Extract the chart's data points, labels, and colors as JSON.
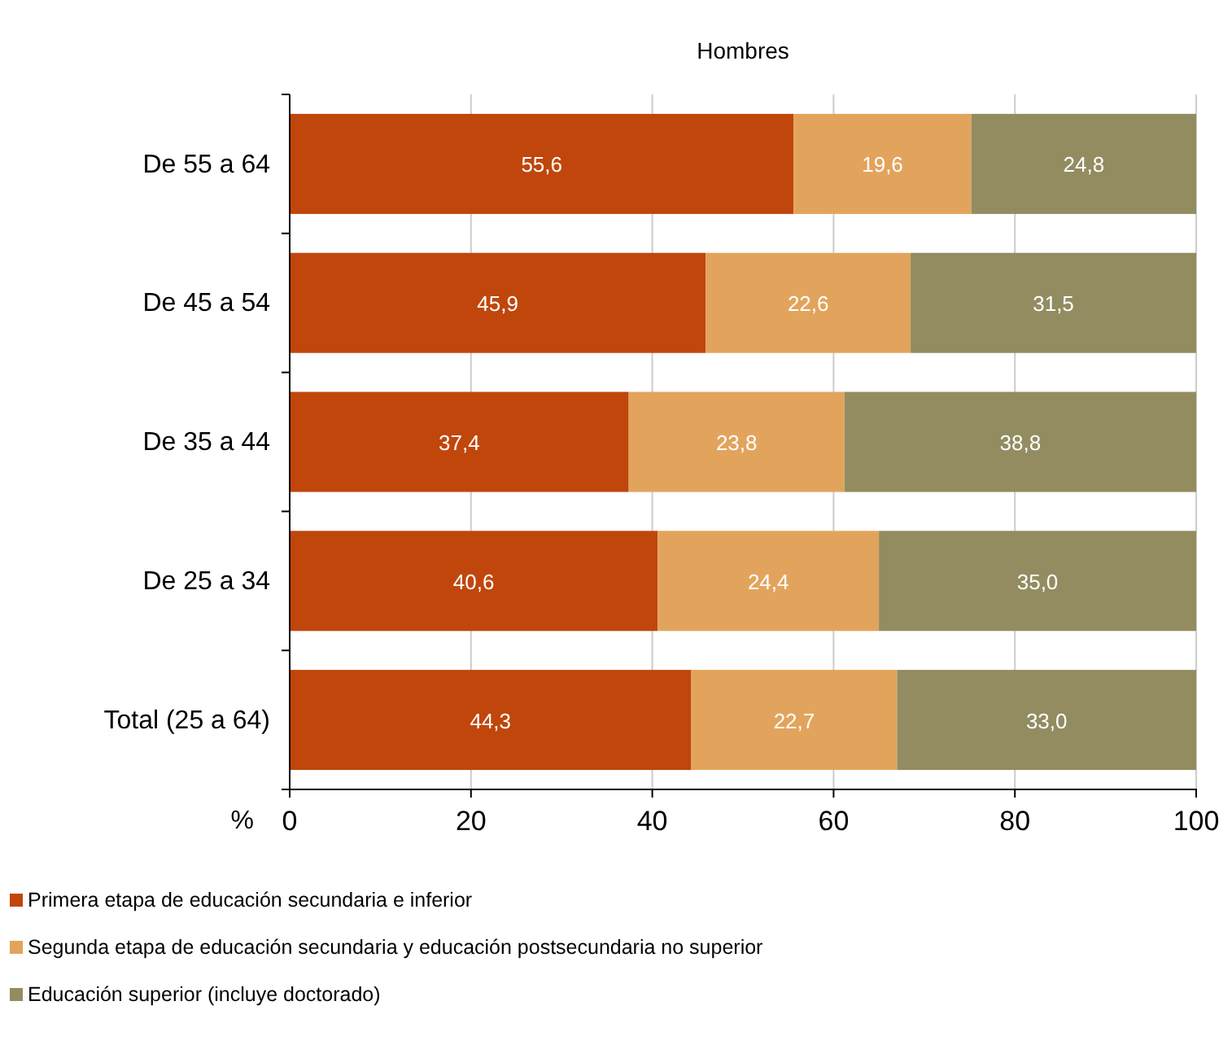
{
  "chart_data": {
    "type": "bar",
    "orientation": "horizontal",
    "stacked": true,
    "title": "Hombres",
    "xlabel": "%",
    "categories": [
      "De 55 a 64",
      "De 45 a 54",
      "De 35 a 44",
      "De 25 a 34",
      "Total (25 a 64)"
    ],
    "series": [
      {
        "name": "Primera etapa de educación secundaria e inferior",
        "color": "#c0460c",
        "values": [
          55.6,
          45.9,
          37.4,
          40.6,
          44.3
        ],
        "value_labels": [
          "55,6",
          "45,9",
          "37,4",
          "40,6",
          "44,3"
        ]
      },
      {
        "name": "Segunda etapa de educación secundaria y educación postsecundaria no superior",
        "color": "#e2a45c",
        "values": [
          19.6,
          22.6,
          23.8,
          24.4,
          22.7
        ],
        "value_labels": [
          "19,6",
          "22,6",
          "23,8",
          "24,4",
          "22,7"
        ]
      },
      {
        "name": "Educación superior (incluye doctorado)",
        "color": "#928c60",
        "values": [
          24.8,
          31.5,
          38.8,
          35.0,
          33.0
        ],
        "value_labels": [
          "24,8",
          "31,5",
          "38,8",
          "35,0",
          "33,0"
        ]
      }
    ],
    "xlim": [
      0,
      100
    ],
    "xticks": [
      0,
      20,
      40,
      60,
      80,
      100
    ],
    "grid": "x",
    "legend": "bottom"
  }
}
